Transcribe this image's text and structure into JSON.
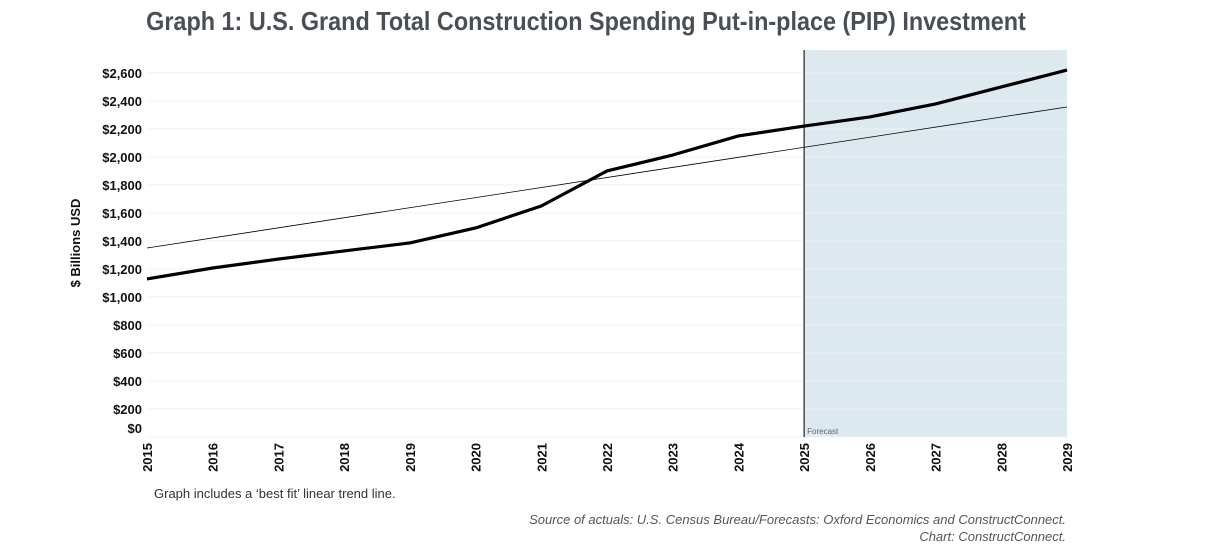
{
  "chart_data": {
    "type": "line",
    "title": "Graph 1: U.S. Grand Total Construction Spending Put-in-place (PIP) Investment",
    "xlabel": "",
    "ylabel": "$ Billions USD",
    "x": [
      "2015",
      "2016",
      "2017",
      "2018",
      "2019",
      "2020",
      "2021",
      "2022",
      "2023",
      "2024",
      "2025",
      "2026",
      "2027",
      "2028",
      "2029"
    ],
    "series": [
      {
        "values": [
          1129,
          1207,
          1271,
          1329,
          1386,
          1493,
          1650,
          1900,
          2014,
          2150,
          2221,
          2286,
          2379,
          2500,
          2621
        ],
        "color": "#000000"
      }
    ],
    "trend_line": {
      "start": 1350,
      "end": 2357,
      "color": "#000000"
    },
    "yticks": [
      0,
      200,
      400,
      600,
      800,
      1000,
      1200,
      1400,
      1600,
      1800,
      2000,
      2200,
      2400,
      2600
    ],
    "ytick_labels": [
      "$0",
      "$200",
      "$400",
      "$600",
      "$800",
      "$1,000",
      "$1,200",
      "$1,400",
      "$1,600",
      "$1,800",
      "$2,000",
      "$2,200",
      "$2,400",
      "$2,600"
    ],
    "ylim": [
      0,
      2764
    ],
    "grid": true,
    "forecast_region": {
      "start": "2025",
      "end": "2029",
      "label": "Forecast",
      "color": "#dce9ef"
    }
  },
  "note": "Graph includes a ‘best fit’ linear trend line.",
  "source_line1": "Source of actuals: U.S. Census Bureau/Forecasts: Oxford Economics and ConstructConnect.",
  "source_line2": "Chart: ConstructConnect."
}
